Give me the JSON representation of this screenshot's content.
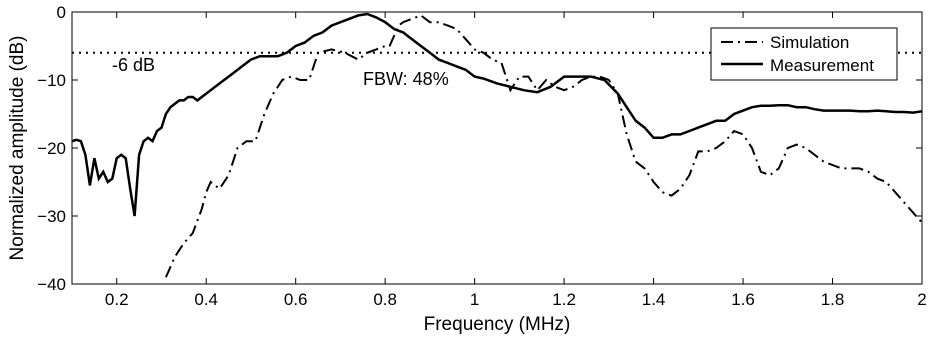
{
  "chart_data": {
    "type": "line",
    "title": "",
    "xlabel": "Frequency (MHz)",
    "ylabel": "Normalized amplitude (dB)",
    "xlim": [
      0.1,
      2.0
    ],
    "ylim": [
      -40,
      0
    ],
    "xticks": [
      0.2,
      0.4,
      0.6,
      0.8,
      1,
      1.2,
      1.4,
      1.6,
      1.8,
      2
    ],
    "xtick_labels": [
      "0.2",
      "0.4",
      "0.6",
      "0.8",
      "1",
      "1.2",
      "1.4",
      "1.6",
      "1.8",
      "2"
    ],
    "yticks": [
      0,
      -10,
      -20,
      -30,
      -40
    ],
    "ytick_labels": [
      "0",
      "−10",
      "−20",
      "−30",
      "−40"
    ],
    "grid": false,
    "legend": {
      "position": "top-right",
      "entries": [
        "Simulation",
        "Measurement"
      ]
    },
    "reference_line": {
      "y": -6,
      "style": "dotted",
      "label": "-6 dB"
    },
    "annotations": [
      {
        "text": "FBW: 48%"
      }
    ],
    "series": [
      {
        "name": "Simulation",
        "style": "dashdot",
        "color": "#000000",
        "x": [
          0.31,
          0.33,
          0.35,
          0.37,
          0.39,
          0.4,
          0.41,
          0.43,
          0.45,
          0.47,
          0.49,
          0.51,
          0.53,
          0.55,
          0.57,
          0.59,
          0.61,
          0.63,
          0.65,
          0.68,
          0.71,
          0.74,
          0.76,
          0.78,
          0.8,
          0.81,
          0.82,
          0.83,
          0.84,
          0.86,
          0.88,
          0.9,
          0.92,
          0.94,
          0.96,
          0.98,
          1.0,
          1.02,
          1.04,
          1.06,
          1.08,
          1.1,
          1.12,
          1.14,
          1.16,
          1.18,
          1.2,
          1.22,
          1.24,
          1.26,
          1.28,
          1.3,
          1.32,
          1.34,
          1.36,
          1.38,
          1.4,
          1.42,
          1.44,
          1.46,
          1.48,
          1.5,
          1.52,
          1.54,
          1.56,
          1.58,
          1.6,
          1.62,
          1.64,
          1.66,
          1.68,
          1.7,
          1.72,
          1.74,
          1.76,
          1.78,
          1.8,
          1.82,
          1.84,
          1.86,
          1.88,
          1.9,
          1.92,
          1.94,
          1.96,
          1.98,
          2.0
        ],
        "y": [
          -39,
          -36,
          -34,
          -32.5,
          -29,
          -26.5,
          -25,
          -26,
          -24,
          -20,
          -19,
          -19,
          -15,
          -12,
          -10,
          -9.5,
          -10,
          -10,
          -6,
          -5.5,
          -6,
          -7,
          -6,
          -5.5,
          -5,
          -5,
          -3.5,
          -2,
          -1.5,
          -1,
          -0.5,
          -1.5,
          -1.5,
          -2,
          -2.5,
          -4,
          -5.5,
          -6,
          -7,
          -7.5,
          -11.5,
          -9.5,
          -9.5,
          -11.5,
          -10,
          -11,
          -11.5,
          -11,
          -10,
          -9.5,
          -9.5,
          -10,
          -12,
          -18,
          -22,
          -23,
          -25,
          -26.5,
          -27,
          -26,
          -24,
          -20.5,
          -20.5,
          -20,
          -19,
          -17.5,
          -18,
          -20,
          -23.5,
          -24,
          -23,
          -20,
          -19.5,
          -20,
          -21,
          -22,
          -22.5,
          -23,
          -23,
          -23,
          -23.5,
          -24.5,
          -25,
          -26.5,
          -28,
          -29.5,
          -31
        ]
      },
      {
        "name": "Measurement",
        "style": "solid",
        "color": "#000000",
        "x": [
          0.1,
          0.11,
          0.12,
          0.13,
          0.14,
          0.15,
          0.16,
          0.17,
          0.18,
          0.19,
          0.2,
          0.21,
          0.22,
          0.23,
          0.24,
          0.25,
          0.26,
          0.27,
          0.28,
          0.29,
          0.3,
          0.31,
          0.32,
          0.33,
          0.34,
          0.35,
          0.36,
          0.37,
          0.38,
          0.4,
          0.42,
          0.44,
          0.46,
          0.48,
          0.5,
          0.52,
          0.54,
          0.56,
          0.58,
          0.6,
          0.62,
          0.64,
          0.66,
          0.68,
          0.7,
          0.72,
          0.74,
          0.76,
          0.78,
          0.8,
          0.82,
          0.84,
          0.86,
          0.88,
          0.9,
          0.92,
          0.94,
          0.96,
          0.98,
          1.0,
          1.02,
          1.05,
          1.08,
          1.11,
          1.14,
          1.17,
          1.2,
          1.23,
          1.26,
          1.29,
          1.32,
          1.34,
          1.36,
          1.38,
          1.4,
          1.42,
          1.44,
          1.46,
          1.48,
          1.5,
          1.52,
          1.54,
          1.56,
          1.58,
          1.6,
          1.62,
          1.64,
          1.66,
          1.68,
          1.7,
          1.72,
          1.74,
          1.76,
          1.78,
          1.8,
          1.82,
          1.84,
          1.86,
          1.88,
          1.9,
          1.92,
          1.94,
          1.96,
          1.98,
          2.0
        ],
        "y": [
          -19,
          -18.8,
          -19,
          -21,
          -25.5,
          -21.5,
          -24.5,
          -23.5,
          -25,
          -24.5,
          -21.5,
          -21,
          -21.5,
          -26,
          -30,
          -21,
          -19,
          -18.5,
          -19,
          -17.5,
          -17,
          -15,
          -14,
          -13.5,
          -13,
          -13,
          -12.5,
          -12.5,
          -13,
          -12,
          -11,
          -10,
          -9,
          -8,
          -7,
          -6.5,
          -6.5,
          -6.5,
          -6,
          -5,
          -4.5,
          -3.5,
          -3,
          -2,
          -1.5,
          -1,
          -0.5,
          -0.3,
          -0.8,
          -1.5,
          -2.5,
          -3,
          -4,
          -5,
          -6,
          -7,
          -7.5,
          -8,
          -8.5,
          -9.5,
          -9.8,
          -10.5,
          -11,
          -11.5,
          -11.8,
          -11,
          -9.5,
          -9.5,
          -9.5,
          -10,
          -12,
          -14,
          -16,
          -17,
          -18.5,
          -18.5,
          -18,
          -18,
          -17.5,
          -17,
          -16.5,
          -16,
          -16,
          -15,
          -14.5,
          -14,
          -13.8,
          -13.8,
          -13.7,
          -13.7,
          -14,
          -14,
          -14.3,
          -14.5,
          -14.5,
          -14.5,
          -14.5,
          -14.6,
          -14.6,
          -14.5,
          -14.6,
          -14.7,
          -14.7,
          -14.8,
          -14.6
        ]
      }
    ]
  }
}
